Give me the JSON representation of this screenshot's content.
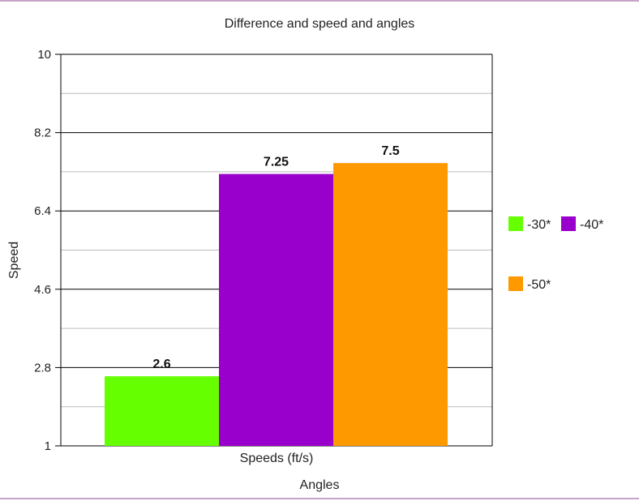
{
  "chart_data": {
    "type": "bar",
    "title": "Difference and speed and angles",
    "xlabel": "Angles",
    "ylabel": "Speed",
    "categories": [
      "Speeds (ft/s)"
    ],
    "series": [
      {
        "name": "-30*",
        "values": [
          2.6
        ],
        "color": "#66ff00"
      },
      {
        "name": "-40*",
        "values": [
          7.25
        ],
        "color": "#9900cc"
      },
      {
        "name": "-50*",
        "values": [
          7.5
        ],
        "color": "#ff9900"
      }
    ],
    "data_labels": [
      "2.6",
      "7.25",
      "7.5"
    ],
    "ylim": [
      1,
      10
    ],
    "y_ticks": [
      "1",
      "2.8",
      "4.6",
      "6.4",
      "8.2",
      "10"
    ],
    "grid": true,
    "legend_position": "right"
  }
}
